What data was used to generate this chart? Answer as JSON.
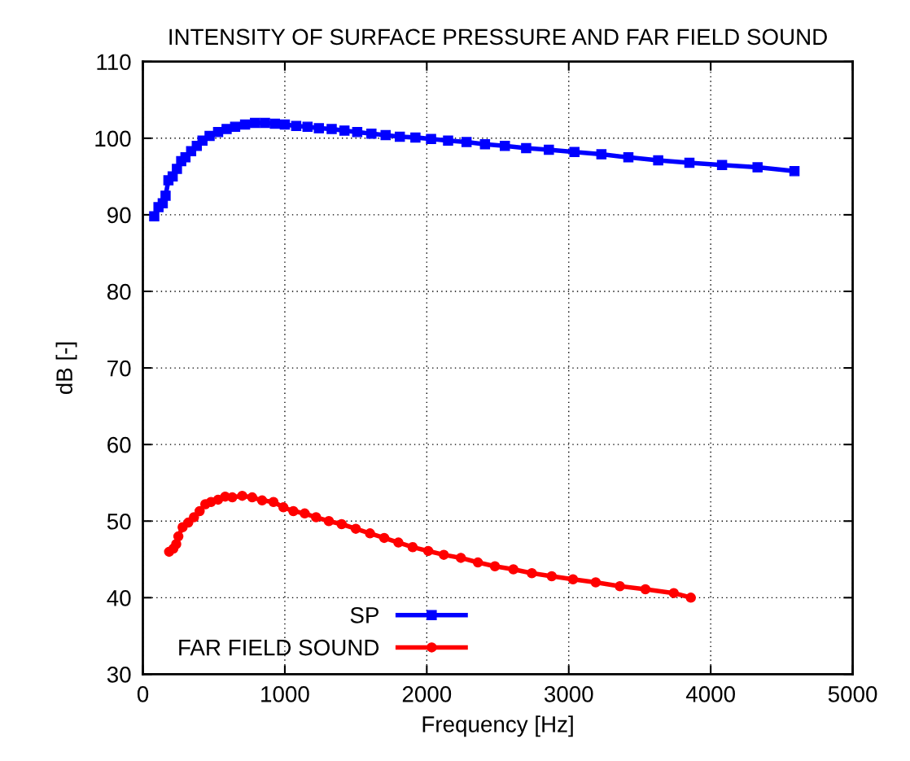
{
  "chart_data": {
    "type": "line",
    "title": "INTENSITY OF SURFACE PRESSURE AND FAR FIELD SOUND",
    "xlabel": "Frequency [Hz]",
    "ylabel": "dB [-]",
    "xlim": [
      0,
      5000
    ],
    "xticks": [
      0,
      1000,
      2000,
      3000,
      4000,
      5000
    ],
    "ylim": [
      30,
      110
    ],
    "yticks": [
      30,
      40,
      50,
      60,
      70,
      80,
      90,
      100,
      110
    ],
    "grid": true,
    "legend": "bottom left",
    "line_style": "solid",
    "series": [
      {
        "name": "SP",
        "color": "#0000ff",
        "marker": "square",
        "x": [
          80,
          110,
          140,
          160,
          180,
          210,
          240,
          270,
          300,
          340,
          380,
          420,
          470,
          530,
          590,
          650,
          720,
          790,
          860,
          930,
          1000,
          1080,
          1160,
          1240,
          1330,
          1420,
          1510,
          1610,
          1710,
          1810,
          1920,
          2030,
          2150,
          2280,
          2410,
          2550,
          2700,
          2860,
          3040,
          3230,
          3420,
          3630,
          3850,
          4080,
          4330,
          4590
        ],
        "values": [
          89.8,
          91,
          91.5,
          92.5,
          94.5,
          95,
          96,
          97,
          97.5,
          98.3,
          99,
          99.7,
          100.3,
          100.8,
          101.2,
          101.5,
          101.8,
          102,
          102,
          101.9,
          101.8,
          101.6,
          101.5,
          101.3,
          101.2,
          101,
          100.8,
          100.6,
          100.4,
          100.2,
          100.1,
          99.9,
          99.7,
          99.5,
          99.2,
          99,
          98.7,
          98.5,
          98.2,
          97.9,
          97.5,
          97.1,
          96.8,
          96.5,
          96.2,
          95.7
        ]
      },
      {
        "name": "FAR FIELD SOUND",
        "color": "#ff0000",
        "marker": "circle",
        "x": [
          185,
          215,
          235,
          250,
          280,
          320,
          360,
          400,
          440,
          480,
          530,
          580,
          630,
          700,
          770,
          840,
          920,
          990,
          1060,
          1140,
          1220,
          1310,
          1400,
          1500,
          1600,
          1700,
          1800,
          1900,
          2010,
          2120,
          2240,
          2360,
          2480,
          2610,
          2740,
          2880,
          3030,
          3190,
          3360,
          3540,
          3740,
          3860
        ],
        "values": [
          46,
          46.4,
          47,
          48,
          49.2,
          49.8,
          50.5,
          51.3,
          52.2,
          52.5,
          52.8,
          53.2,
          53.1,
          53.3,
          53.1,
          52.7,
          52.5,
          51.8,
          51.3,
          51,
          50.5,
          50,
          49.6,
          49,
          48.4,
          47.8,
          47.2,
          46.6,
          46.1,
          45.6,
          45.2,
          44.6,
          44.1,
          43.7,
          43.2,
          42.8,
          42.4,
          42,
          41.5,
          41.1,
          40.6,
          40
        ]
      }
    ]
  }
}
